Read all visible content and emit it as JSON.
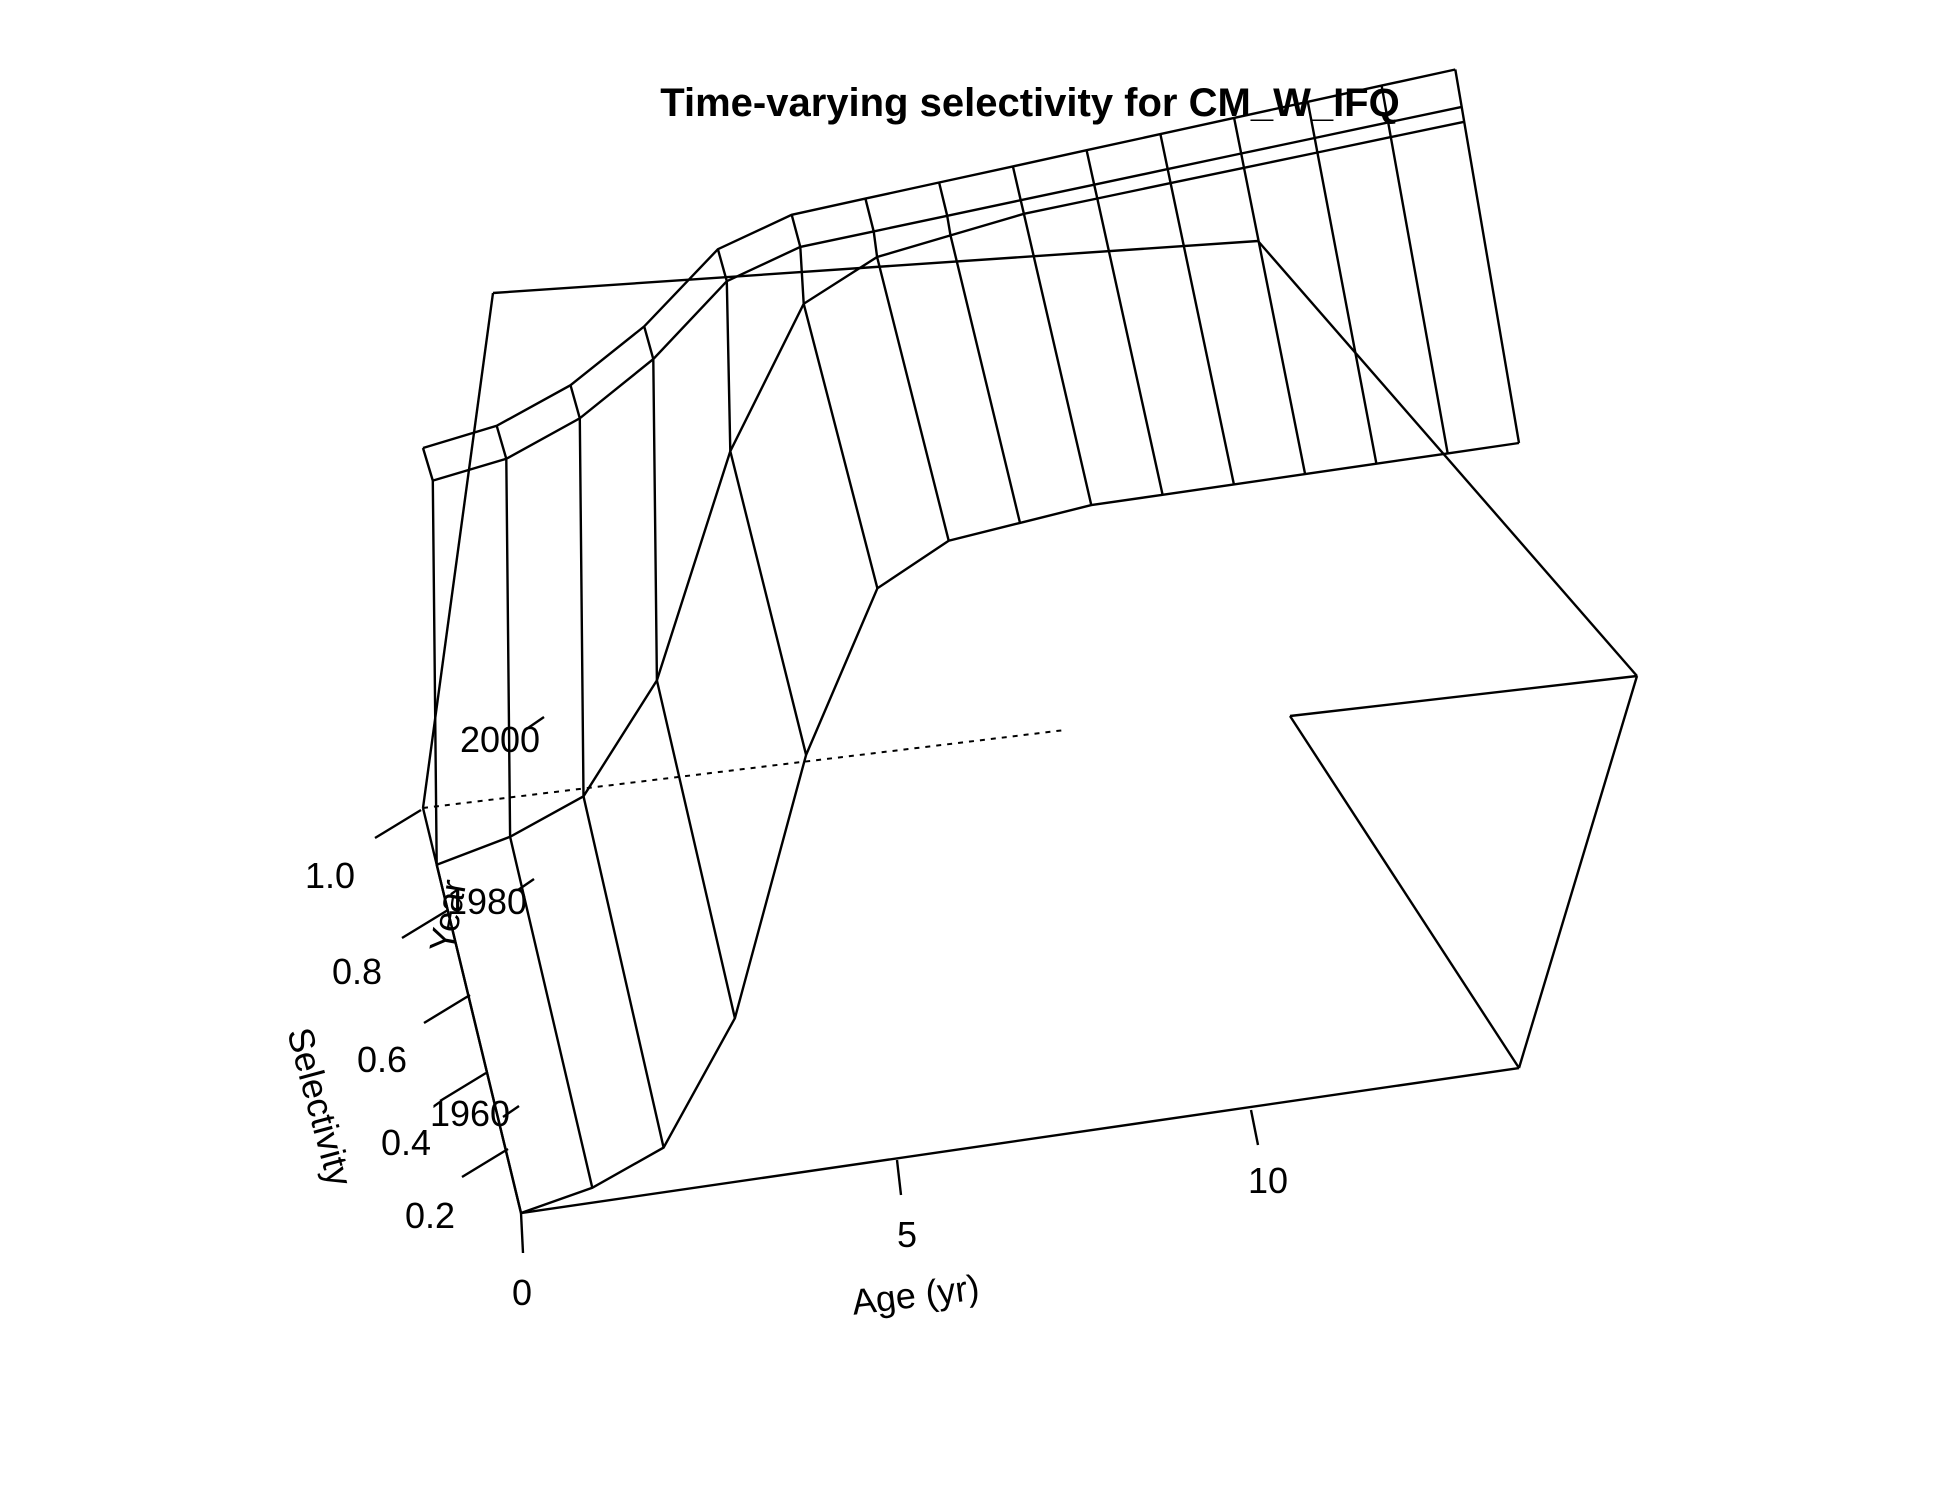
{
  "chart_data": {
    "type": "surface",
    "title": "Time-varying selectivity for CM_W_IFQ",
    "xlabel": "Age (yr)",
    "ylabel": "Year",
    "zlabel": "Selectivity",
    "x_ticks": [
      "0",
      "5",
      "10"
    ],
    "y_ticks": [
      "1960",
      "1980",
      "2000"
    ],
    "z_ticks": [
      "0.2",
      "0.4",
      "0.6",
      "0.8",
      "1.0"
    ],
    "age": [
      0,
      1,
      2,
      3,
      4,
      5,
      6,
      7,
      8,
      9,
      10,
      11,
      12,
      13,
      14
    ],
    "selectivity_early": [
      0.16,
      0.18,
      0.22,
      0.38,
      0.72,
      0.93,
      0.98,
      0.99,
      1.0,
      1.0,
      1.0,
      1.0,
      1.0,
      1.0,
      1.0
    ],
    "selectivity_recent": [
      0.75,
      0.76,
      0.8,
      0.87,
      0.97,
      1.0,
      1.0,
      1.0,
      1.0,
      1.0,
      1.0,
      1.0,
      1.0,
      1.0,
      1.0
    ],
    "year_range": [
      1950,
      2015
    ],
    "xlim": [
      0,
      14
    ],
    "zlim": [
      0.16,
      1.0
    ]
  }
}
